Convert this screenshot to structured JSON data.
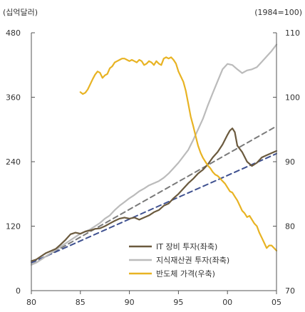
{
  "chart_data": {
    "type": "line",
    "left_unit": "(십억달러)",
    "right_unit": "(1984=100)",
    "x_ticks": [
      "80",
      "85",
      "90",
      "95",
      "00",
      "05"
    ],
    "x_range": [
      1980,
      2005
    ],
    "y_left_ticks": [
      "0",
      "120",
      "240",
      "360",
      "480"
    ],
    "y_left_range": [
      0,
      480
    ],
    "y_right_ticks": [
      "70",
      "80",
      "90",
      "100",
      "110"
    ],
    "y_right_range": [
      70,
      110
    ],
    "legend_placement": "bottom-right",
    "series": [
      {
        "name": "IT 장비 투자(좌축)",
        "axis": "left",
        "color": "#6b5a3e",
        "style": "solid",
        "x": [
          1980.0,
          1980.5,
          1981.0,
          1981.5,
          1982.0,
          1982.5,
          1983.0,
          1983.5,
          1984.0,
          1984.5,
          1985.0,
          1985.5,
          1986.0,
          1986.5,
          1987.0,
          1987.5,
          1988.0,
          1988.5,
          1989.0,
          1989.5,
          1990.0,
          1990.5,
          1991.0,
          1991.5,
          1992.0,
          1992.5,
          1993.0,
          1993.5,
          1994.0,
          1994.5,
          1995.0,
          1995.5,
          1996.0,
          1996.5,
          1997.0,
          1997.5,
          1998.0,
          1998.5,
          1999.0,
          1999.5,
          2000.0,
          2000.25,
          2000.5,
          2000.75,
          2001.0,
          2001.5,
          2002.0,
          2002.5,
          2003.0,
          2003.5,
          2004.0,
          2004.5,
          2005.0
        ],
        "y": [
          55,
          58,
          64,
          70,
          74,
          78,
          86,
          95,
          105,
          108,
          106,
          110,
          112,
          115,
          116,
          120,
          125,
          130,
          134,
          136,
          134,
          136,
          132,
          136,
          140,
          146,
          150,
          158,
          162,
          172,
          180,
          190,
          200,
          208,
          218,
          225,
          235,
          248,
          258,
          272,
          290,
          298,
          302,
          295,
          270,
          258,
          240,
          232,
          238,
          248,
          252,
          256,
          260
        ]
      },
      {
        "name": "지식재산권 투자(좌축)",
        "axis": "left",
        "color": "#bbbbbb",
        "style": "solid",
        "x": [
          1980.0,
          1980.5,
          1981.0,
          1981.5,
          1982.0,
          1982.5,
          1983.0,
          1983.5,
          1984.0,
          1984.5,
          1985.0,
          1985.5,
          1986.0,
          1986.5,
          1987.0,
          1987.5,
          1988.0,
          1988.5,
          1989.0,
          1989.5,
          1990.0,
          1990.5,
          1991.0,
          1991.5,
          1992.0,
          1992.5,
          1993.0,
          1993.5,
          1994.0,
          1994.5,
          1995.0,
          1995.5,
          1996.0,
          1996.5,
          1997.0,
          1997.5,
          1998.0,
          1998.5,
          1999.0,
          1999.5,
          2000.0,
          2000.5,
          2001.0,
          2001.5,
          2002.0,
          2002.5,
          2003.0,
          2003.5,
          2004.0,
          2004.5,
          2005.0
        ],
        "y": [
          48,
          52,
          58,
          64,
          70,
          76,
          82,
          88,
          94,
          100,
          106,
          110,
          114,
          120,
          126,
          134,
          140,
          150,
          158,
          165,
          172,
          178,
          185,
          190,
          196,
          200,
          204,
          210,
          218,
          228,
          238,
          250,
          262,
          280,
          300,
          320,
          345,
          368,
          390,
          412,
          422,
          420,
          412,
          405,
          410,
          412,
          416,
          426,
          436,
          446,
          458
        ]
      },
      {
        "name": "반도체 가격(우축)",
        "axis": "right",
        "color": "#e8b323",
        "style": "solid",
        "x": [
          1985.0,
          1985.25,
          1985.5,
          1985.75,
          1986.0,
          1986.25,
          1986.5,
          1986.75,
          1987.0,
          1987.25,
          1987.5,
          1987.75,
          1988.0,
          1988.25,
          1988.5,
          1988.75,
          1989.0,
          1989.25,
          1989.5,
          1989.75,
          1990.0,
          1990.25,
          1990.5,
          1990.75,
          1991.0,
          1991.25,
          1991.5,
          1991.75,
          1992.0,
          1992.25,
          1992.5,
          1992.75,
          1993.0,
          1993.25,
          1993.5,
          1993.75,
          1994.0,
          1994.25,
          1994.5,
          1994.75,
          1995.0,
          1995.25,
          1995.5,
          1995.75,
          1996.0,
          1996.25,
          1996.5,
          1996.75,
          1997.0,
          1997.25,
          1997.5,
          1997.75,
          1998.0,
          1998.25,
          1998.5,
          1998.75,
          1999.0,
          1999.25,
          1999.5,
          1999.75,
          2000.0,
          2000.25,
          2000.5,
          2000.75,
          2001.0,
          2001.25,
          2001.5,
          2001.75,
          2002.0,
          2002.25,
          2002.5,
          2002.75,
          2003.0,
          2003.25,
          2003.5,
          2003.75,
          2004.0,
          2004.25,
          2004.5,
          2004.75,
          2005.0
        ],
        "y": [
          100.8,
          100.5,
          100.7,
          101.2,
          102.0,
          102.8,
          103.5,
          104.0,
          103.8,
          103.0,
          103.4,
          103.6,
          104.5,
          104.8,
          105.4,
          105.6,
          105.8,
          106.0,
          106.0,
          105.8,
          105.6,
          105.8,
          105.6,
          105.4,
          105.8,
          105.6,
          105.0,
          105.2,
          105.6,
          105.4,
          105.0,
          105.6,
          105.2,
          105.0,
          106.0,
          106.2,
          106.0,
          106.2,
          105.8,
          105.2,
          104.0,
          103.2,
          102.4,
          101.0,
          99.0,
          97.0,
          95.6,
          94.0,
          92.5,
          91.4,
          90.6,
          90.0,
          89.4,
          89.0,
          88.4,
          88.0,
          87.8,
          87.4,
          87.0,
          86.6,
          86.0,
          85.4,
          85.2,
          84.6,
          84.0,
          83.2,
          82.4,
          82.0,
          81.4,
          81.6,
          81.0,
          80.4,
          80.0,
          79.0,
          78.2,
          77.4,
          76.6,
          77.0,
          77.0,
          76.6,
          76.2
        ]
      },
      {
        "axis": "left",
        "color": "#7a7a7a",
        "style": "dashed",
        "x": [
          1980,
          2005
        ],
        "y": [
          48,
          306
        ]
      },
      {
        "axis": "left",
        "color": "#3f5190",
        "style": "dashed",
        "x": [
          1980,
          2005
        ],
        "y": [
          52,
          255
        ]
      }
    ]
  }
}
